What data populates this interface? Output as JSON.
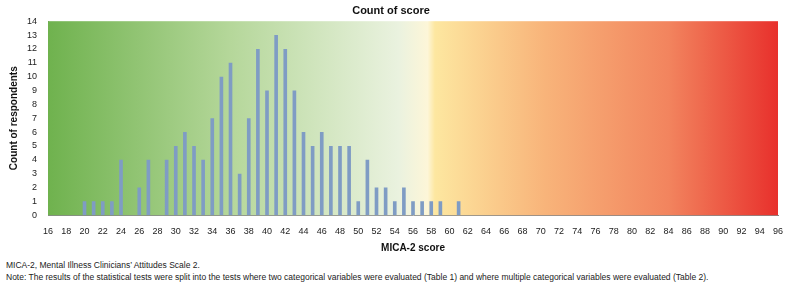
{
  "chart_data": {
    "type": "bar",
    "title": "Count of score",
    "x_label": "MICA-2 score",
    "y_label": "Count of respondents",
    "x": [
      20,
      21,
      22,
      23,
      24,
      25,
      26,
      27,
      28,
      29,
      30,
      31,
      32,
      33,
      34,
      35,
      36,
      37,
      38,
      39,
      40,
      41,
      42,
      43,
      44,
      45,
      46,
      47,
      48,
      49,
      50,
      51,
      52,
      53,
      54,
      55,
      56,
      57,
      58,
      59,
      60,
      61
    ],
    "values": [
      1,
      1,
      1,
      1,
      4,
      0,
      2,
      4,
      0,
      4,
      5,
      6,
      5,
      4,
      7,
      10,
      11,
      3,
      7,
      12,
      9,
      13,
      12,
      9,
      6,
      5,
      6,
      5,
      5,
      5,
      1,
      4,
      2,
      2,
      1,
      2,
      1,
      1,
      1,
      1,
      0,
      1
    ],
    "color": "#7f9cc4",
    "xlim": [
      16,
      96
    ],
    "xticks": [
      16,
      18,
      20,
      22,
      24,
      26,
      28,
      30,
      32,
      34,
      36,
      38,
      40,
      42,
      44,
      46,
      48,
      50,
      52,
      54,
      56,
      58,
      60,
      62,
      64,
      66,
      68,
      70,
      72,
      74,
      76,
      78,
      80,
      82,
      84,
      86,
      88,
      90,
      92,
      94,
      96
    ],
    "ylim": [
      0,
      14
    ],
    "yticks": [
      0,
      1,
      2,
      3,
      4,
      5,
      6,
      7,
      8,
      9,
      10,
      11,
      12,
      13,
      14
    ],
    "grid": false,
    "annotations": [
      "MICA-2, Mental Illness Clinicians’ Attitudes Scale 2.",
      "Note: The results of the statistical tests were split into the tests where two categorical variables were evaluated (Table 1) and where multiple categorical variables were evaluated (Table 2)."
    ]
  }
}
